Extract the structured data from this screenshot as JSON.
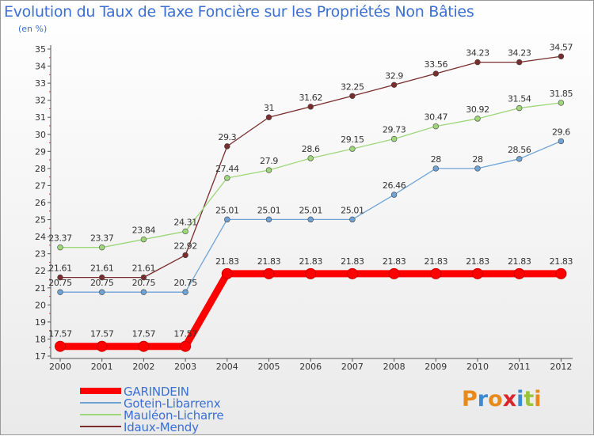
{
  "chart_data": {
    "type": "line",
    "title": "Evolution du Taux de Taxe Foncière sur les Propriétés Non Bâties",
    "ylabel": "(en %)",
    "xlabel": "",
    "categories": [
      "2000",
      "2001",
      "2002",
      "2003",
      "2004",
      "2005",
      "2006",
      "2007",
      "2008",
      "2009",
      "2010",
      "2011",
      "2012"
    ],
    "ylim": [
      17,
      35
    ],
    "yticks": [
      17,
      18,
      19,
      20,
      21,
      22,
      23,
      24,
      25,
      26,
      27,
      28,
      29,
      30,
      31,
      32,
      33,
      34,
      35
    ],
    "grid": false,
    "legend_position": "bottom-left",
    "series": [
      {
        "name": "GARINDEIN",
        "color": "#ff0000",
        "labels": [
          "17.57",
          "17.57",
          "17.57",
          "17.57",
          "21.83",
          "21.83",
          "21.83",
          "21.83",
          "21.83",
          "21.83",
          "21.83",
          "21.83",
          "21.83"
        ],
        "values": [
          17.57,
          17.57,
          17.57,
          17.57,
          21.83,
          21.83,
          21.83,
          21.83,
          21.83,
          21.83,
          21.83,
          21.83,
          21.83
        ]
      },
      {
        "name": "Gotein-Libarrenx",
        "color": "#6fa3d6",
        "labels": [
          "20.75",
          "20.75",
          "20.75",
          "20.75",
          "25.01",
          "25.01",
          "25.01",
          "25.01",
          "26.46",
          "28",
          "28",
          "28.56",
          "29.6"
        ],
        "values": [
          20.75,
          20.75,
          20.75,
          20.75,
          25.01,
          25.01,
          25.01,
          25.01,
          26.46,
          28,
          28,
          28.56,
          29.6
        ]
      },
      {
        "name": "Mauléon-Licharre",
        "color": "#9ed67a",
        "labels": [
          "23.37",
          "23.37",
          "23.84",
          "24.31",
          "27.44",
          "27.9",
          "28.6",
          "29.15",
          "29.73",
          "30.47",
          "30.92",
          "31.54",
          "31.85"
        ],
        "values": [
          23.37,
          23.37,
          23.84,
          24.31,
          27.44,
          27.9,
          28.6,
          29.15,
          29.73,
          30.47,
          30.92,
          31.54,
          31.85
        ]
      },
      {
        "name": "Idaux-Mendy",
        "color": "#7a2d2d",
        "labels": [
          "21.61",
          "21.61",
          "21.61",
          "22.92",
          "29.3",
          "31",
          "31.62",
          "32.25",
          "32.9",
          "33.56",
          "34.23",
          "34.23",
          "34.57"
        ],
        "values": [
          21.61,
          21.61,
          21.61,
          22.92,
          29.3,
          31,
          31.62,
          32.25,
          32.9,
          33.56,
          34.23,
          34.23,
          34.57
        ]
      }
    ]
  },
  "logo": {
    "text": "Proxiti",
    "letter_colors": [
      "#e8891c",
      "#3b8ad4",
      "#e8891c",
      "#d9262c",
      "#3b8ad4",
      "#9ac33c",
      "#e8891c"
    ]
  }
}
